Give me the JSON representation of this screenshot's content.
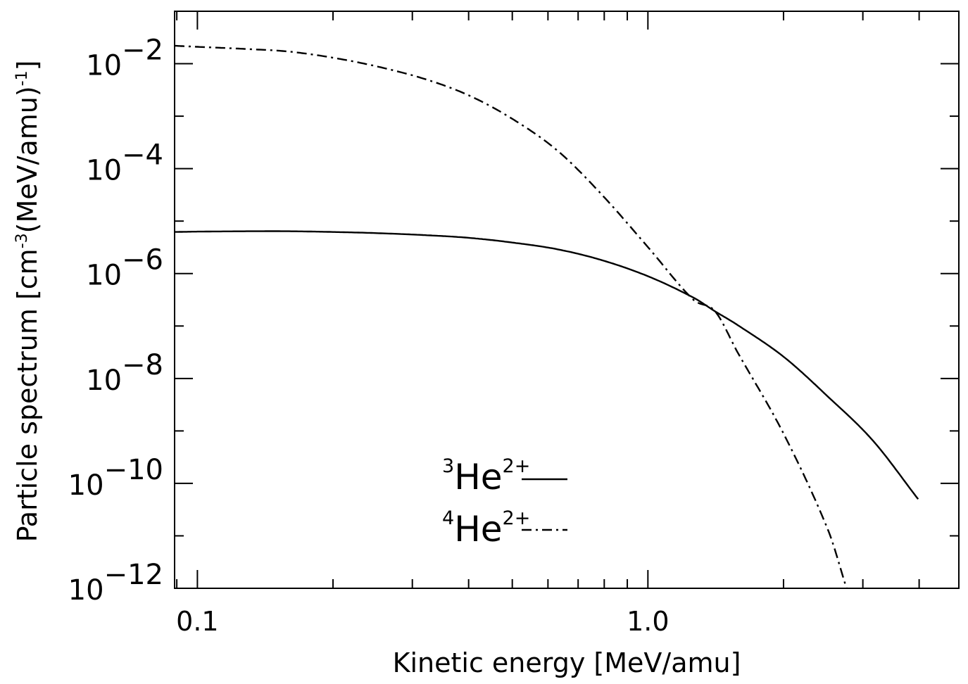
{
  "chart_data": {
    "type": "line",
    "xlabel": "Kinetic energy [MeV/amu]",
    "ylabel": {
      "pre": "Particle spectrum  [cm",
      "sup1": "-3",
      "mid": "(MeV/amu)",
      "sup2": "-1",
      "post": "]"
    },
    "x_scale": "log",
    "y_scale": "log",
    "xlim": [
      0.089,
      4.9
    ],
    "ylim": [
      1e-12,
      0.1
    ],
    "x_ticks": [
      {
        "value": 0.1,
        "label": "0.1"
      },
      {
        "value": 1.0,
        "label": "1.0"
      }
    ],
    "y_ticks": [
      {
        "value": 0.01,
        "base": "10",
        "exp": "−2"
      },
      {
        "value": 0.0001,
        "base": "10",
        "exp": "−4"
      },
      {
        "value": 1e-06,
        "base": "10",
        "exp": "−6"
      },
      {
        "value": 1e-08,
        "base": "10",
        "exp": "−8"
      },
      {
        "value": 1e-10,
        "base": "10",
        "exp": "−10"
      },
      {
        "value": 1e-12,
        "base": "10",
        "exp": "−12"
      }
    ],
    "grid": false,
    "legend_position": "bottom-center",
    "series": [
      {
        "name": {
          "mass": "3",
          "sym": "He",
          "charge": "2+"
        },
        "style": "solid",
        "color": "#000000",
        "points": [
          [
            0.089,
            6.2e-06
          ],
          [
            0.1,
            6.3e-06
          ],
          [
            0.13,
            6.4e-06
          ],
          [
            0.16,
            6.4e-06
          ],
          [
            0.2,
            6.2e-06
          ],
          [
            0.25,
            5.9e-06
          ],
          [
            0.32,
            5.4e-06
          ],
          [
            0.4,
            4.8e-06
          ],
          [
            0.5,
            3.9e-06
          ],
          [
            0.63,
            2.9e-06
          ],
          [
            0.79,
            1.8e-06
          ],
          [
            1.0,
            8.9e-07
          ],
          [
            1.26,
            3.5e-07
          ],
          [
            1.41,
            1.9e-07
          ],
          [
            1.58,
            1.05e-07
          ],
          [
            2.0,
            2.6e-08
          ],
          [
            2.51,
            4.5e-09
          ],
          [
            3.16,
            6.5e-10
          ],
          [
            3.98,
            5e-11
          ]
        ]
      },
      {
        "name": {
          "mass": "4",
          "sym": "He",
          "charge": "2+"
        },
        "style": "dashdot",
        "color": "#000000",
        "points": [
          [
            0.089,
            0.022
          ],
          [
            0.1,
            0.021
          ],
          [
            0.13,
            0.019
          ],
          [
            0.16,
            0.017
          ],
          [
            0.2,
            0.013
          ],
          [
            0.25,
            0.0089
          ],
          [
            0.32,
            0.0051
          ],
          [
            0.4,
            0.0025
          ],
          [
            0.5,
            0.00089
          ],
          [
            0.63,
            0.00022
          ],
          [
            0.79,
            3.2e-05
          ],
          [
            1.0,
            3.2e-06
          ],
          [
            1.26,
            3.2e-07
          ],
          [
            1.41,
            1.9e-07
          ],
          [
            1.58,
            3.2e-08
          ],
          [
            2.0,
            8.9e-10
          ],
          [
            2.51,
            1.3e-11
          ],
          [
            2.76,
            1e-12
          ]
        ]
      }
    ]
  }
}
